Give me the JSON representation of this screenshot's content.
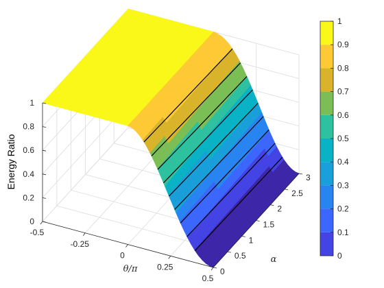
{
  "chart_data": {
    "type": "surface",
    "zlabel": "Energy Ratio",
    "xlabel": "θ/π",
    "ylabel": "α",
    "x_ticks": [
      "-0.5",
      "-0.25",
      "0",
      "0.25",
      "0.5"
    ],
    "x_tick_values": [
      -0.5,
      -0.25,
      0,
      0.25,
      0.5
    ],
    "y_ticks": [
      "0",
      "0.5",
      "1",
      "1.5",
      "2",
      "2.5",
      "3"
    ],
    "y_tick_values": [
      0,
      0.5,
      1,
      1.5,
      2,
      2.5,
      3
    ],
    "z_ticks": [
      "0",
      "0.2",
      "0.4",
      "0.6",
      "0.8",
      "1"
    ],
    "z_tick_values": [
      0,
      0.2,
      0.4,
      0.6,
      0.8,
      1
    ],
    "xlim": [
      -0.5,
      0.5
    ],
    "ylim": [
      0,
      3
    ],
    "zlim": [
      0,
      1
    ],
    "grid": true,
    "colormap": "parula",
    "colorbar": {
      "position": "right",
      "ticks": [
        "0",
        "0.1",
        "0.2",
        "0.3",
        "0.4",
        "0.5",
        "0.6",
        "0.7",
        "0.8",
        "0.9",
        "1"
      ],
      "levels": [
        0,
        0.1,
        0.2,
        0.3,
        0.4,
        0.5,
        0.6,
        0.7,
        0.8,
        0.9,
        1
      ],
      "colors": [
        "#3E26A8",
        "#4443E4",
        "#3C67FE",
        "#2884F0",
        "#199FD9",
        "#09B2C5",
        "#2EC1A0",
        "#7ABE55",
        "#D9B42B",
        "#FDC934",
        "#F9F819"
      ]
    },
    "contour_levels": [
      0.1,
      0.2,
      0.3,
      0.4,
      0.5,
      0.6,
      0.7,
      0.8,
      0.9
    ],
    "surface_profile": {
      "description_of_data": "energy ratio versus theta/pi and alpha; equals 1 for theta/pi <= 0, falls to 0 at theta/pi = 0.5",
      "theta_over_pi": [
        -0.5,
        0,
        0.05,
        0.1,
        0.15,
        0.2,
        0.25,
        0.3,
        0.35,
        0.4,
        0.45,
        0.5
      ],
      "energy_ratio_at_alpha_3": [
        1,
        1,
        0.99,
        0.96,
        0.9,
        0.8,
        0.65,
        0.5,
        0.35,
        0.2,
        0.08,
        0.0
      ],
      "energy_ratio_at_alpha_0_5": [
        1,
        1,
        1,
        0.99,
        0.97,
        0.9,
        0.78,
        0.6,
        0.42,
        0.25,
        0.1,
        0.0
      ]
    }
  }
}
